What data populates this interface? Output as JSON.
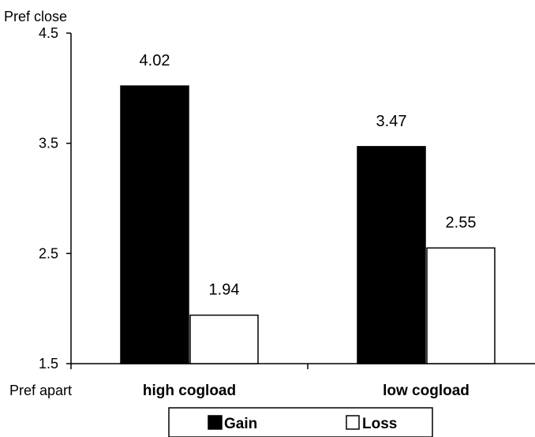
{
  "chart_data": {
    "type": "bar",
    "title": "",
    "ylabel_top": "Pref close",
    "ylabel_bottom": "Pref apart",
    "ylim": [
      1.5,
      4.5
    ],
    "yticks": [
      "1.5",
      "2.5",
      "3.5",
      "4.5"
    ],
    "ytick_values": [
      1.5,
      2.5,
      3.5,
      4.5
    ],
    "categories": [
      "high cogload",
      "low cogload"
    ],
    "series": [
      {
        "name": "Gain",
        "values": [
          4.02,
          3.47
        ],
        "labels": [
          "4.02",
          "3.47"
        ],
        "fill": "#000000"
      },
      {
        "name": "Loss",
        "values": [
          1.94,
          2.55
        ],
        "labels": [
          "1.94",
          "2.55"
        ],
        "fill": "#ffffff"
      }
    ],
    "legend_position": "bottom",
    "grid": false
  }
}
